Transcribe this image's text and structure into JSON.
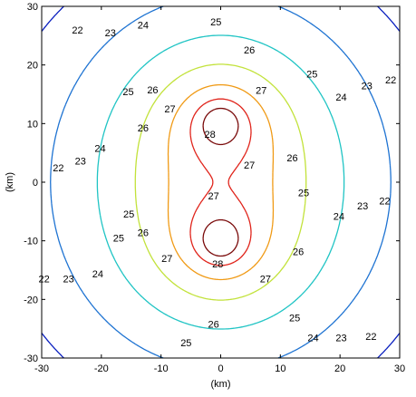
{
  "chart_data": {
    "type": "contour",
    "xlabel": "(km)",
    "ylabel": "(km)",
    "xlim": [
      -30,
      30
    ],
    "ylim": [
      -30,
      30
    ],
    "xticks": [
      -30,
      -20,
      -10,
      0,
      10,
      20,
      30
    ],
    "yticks": [
      -30,
      -20,
      -10,
      0,
      10,
      20,
      30
    ],
    "grid": false,
    "sources": [
      {
        "x": 0,
        "y": 10
      },
      {
        "x": 0,
        "y": -10
      }
    ],
    "levels": [
      {
        "value": 22,
        "color": "#0a1fbf"
      },
      {
        "value": 23,
        "color": "#1e73d2"
      },
      {
        "value": 24,
        "color": "#1fc4c4"
      },
      {
        "value": 25,
        "color": "#c2e23a"
      },
      {
        "value": 26,
        "color": "#f09a15"
      },
      {
        "value": 27,
        "color": "#e0241b"
      },
      {
        "value": 28,
        "color": "#7a0a0a"
      }
    ],
    "contour_labels": [
      {
        "text": "22",
        "x": -24,
        "y": 26
      },
      {
        "text": "23",
        "x": -18.5,
        "y": 25.5
      },
      {
        "text": "24",
        "x": -13,
        "y": 26.8
      },
      {
        "text": "25",
        "x": -0.8,
        "y": 27.4
      },
      {
        "text": "26",
        "x": 4.8,
        "y": 22.6
      },
      {
        "text": "27",
        "x": 6.8,
        "y": 15.7
      },
      {
        "text": "28",
        "x": -1.8,
        "y": 8.2
      },
      {
        "text": "27",
        "x": -8.5,
        "y": 12.5
      },
      {
        "text": "26",
        "x": -11.4,
        "y": 15.8
      },
      {
        "text": "26",
        "x": -13,
        "y": 9.3
      },
      {
        "text": "25",
        "x": -15.5,
        "y": 15.5
      },
      {
        "text": "24",
        "x": -20.2,
        "y": 5.8
      },
      {
        "text": "23",
        "x": -23.5,
        "y": 3.6
      },
      {
        "text": "22",
        "x": -27.2,
        "y": 2.5
      },
      {
        "text": "25",
        "x": 15.3,
        "y": 18.5
      },
      {
        "text": "24",
        "x": 20.2,
        "y": 14.5
      },
      {
        "text": "23",
        "x": 24.5,
        "y": 16.5
      },
      {
        "text": "22",
        "x": 28.5,
        "y": 17.5
      },
      {
        "text": "26",
        "x": 12,
        "y": 4.2
      },
      {
        "text": "27",
        "x": 4.8,
        "y": 2.9
      },
      {
        "text": "27",
        "x": -1.2,
        "y": -2.3
      },
      {
        "text": "25",
        "x": 13.9,
        "y": -1.8
      },
      {
        "text": "23",
        "x": 23.8,
        "y": -4
      },
      {
        "text": "22",
        "x": 27.5,
        "y": -3.2
      },
      {
        "text": "24",
        "x": 19.8,
        "y": -5.8
      },
      {
        "text": "25",
        "x": -15.4,
        "y": -5.4
      },
      {
        "text": "26",
        "x": -13,
        "y": -8.6
      },
      {
        "text": "25",
        "x": -17.1,
        "y": -9.5
      },
      {
        "text": "27",
        "x": -9,
        "y": -13
      },
      {
        "text": "28",
        "x": -0.5,
        "y": -13.9
      },
      {
        "text": "26",
        "x": 13,
        "y": -11.8
      },
      {
        "text": "27",
        "x": 7.5,
        "y": -16.5
      },
      {
        "text": "24",
        "x": -20.6,
        "y": -15.6
      },
      {
        "text": "23",
        "x": -25.5,
        "y": -16.5
      },
      {
        "text": "22",
        "x": -29.6,
        "y": -16.5
      },
      {
        "text": "26",
        "x": -1.2,
        "y": -24.2
      },
      {
        "text": "25",
        "x": 12.4,
        "y": -23.1
      },
      {
        "text": "25",
        "x": -5.8,
        "y": -27.4
      },
      {
        "text": "24",
        "x": 15.5,
        "y": -26.5
      },
      {
        "text": "23",
        "x": 20.2,
        "y": -26.5
      },
      {
        "text": "22",
        "x": 25.2,
        "y": -26.3
      }
    ]
  }
}
